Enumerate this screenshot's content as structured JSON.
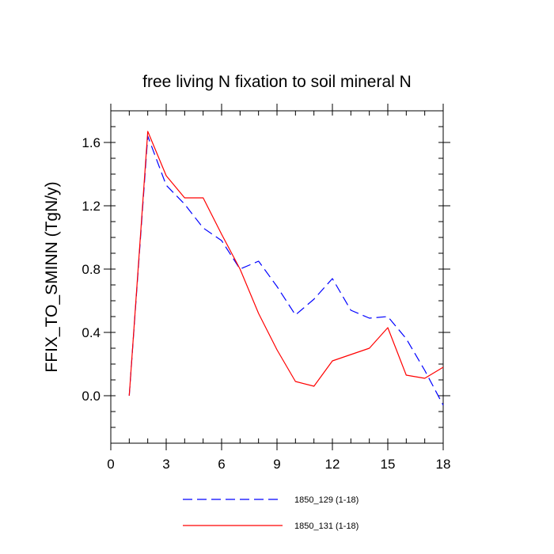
{
  "chart_data": {
    "type": "line",
    "title": "free living N fixation to soil mineral N",
    "xlabel": "",
    "ylabel": "FFIX_TO_SMINN  (TgN/y)",
    "xlim": [
      0,
      18
    ],
    "ylim": [
      -0.3,
      1.8
    ],
    "xticks": [
      0,
      3,
      6,
      9,
      12,
      15,
      18
    ],
    "xtick_labels": [
      "0",
      "3",
      "6",
      "9",
      "12",
      "15",
      "18"
    ],
    "yticks": [
      0.0,
      0.4,
      0.8,
      1.2,
      1.6
    ],
    "ytick_labels": [
      "0.0",
      "0.4",
      "0.8",
      "1.2",
      "1.6"
    ],
    "x": [
      1,
      2,
      3,
      4,
      5,
      6,
      7,
      8,
      9,
      10,
      11,
      12,
      13,
      14,
      15,
      16,
      17,
      18
    ],
    "series": [
      {
        "name": "1850_129 (1-18)",
        "color": "#0000ff",
        "dash": "dashed",
        "values": [
          0.0,
          1.64,
          1.33,
          1.21,
          1.06,
          0.98,
          0.8,
          0.85,
          0.69,
          0.51,
          0.61,
          0.74,
          0.54,
          0.49,
          0.5,
          0.36,
          0.16,
          -0.06
        ]
      },
      {
        "name": "1850_131 (1-18)",
        "color": "#ff0000",
        "dash": "solid",
        "values": [
          0.0,
          1.67,
          1.39,
          1.25,
          1.25,
          1.02,
          0.8,
          0.52,
          0.29,
          0.09,
          0.06,
          0.22,
          0.26,
          0.3,
          0.43,
          0.13,
          0.11,
          0.18
        ]
      }
    ],
    "legend_position": "bottom-center"
  }
}
